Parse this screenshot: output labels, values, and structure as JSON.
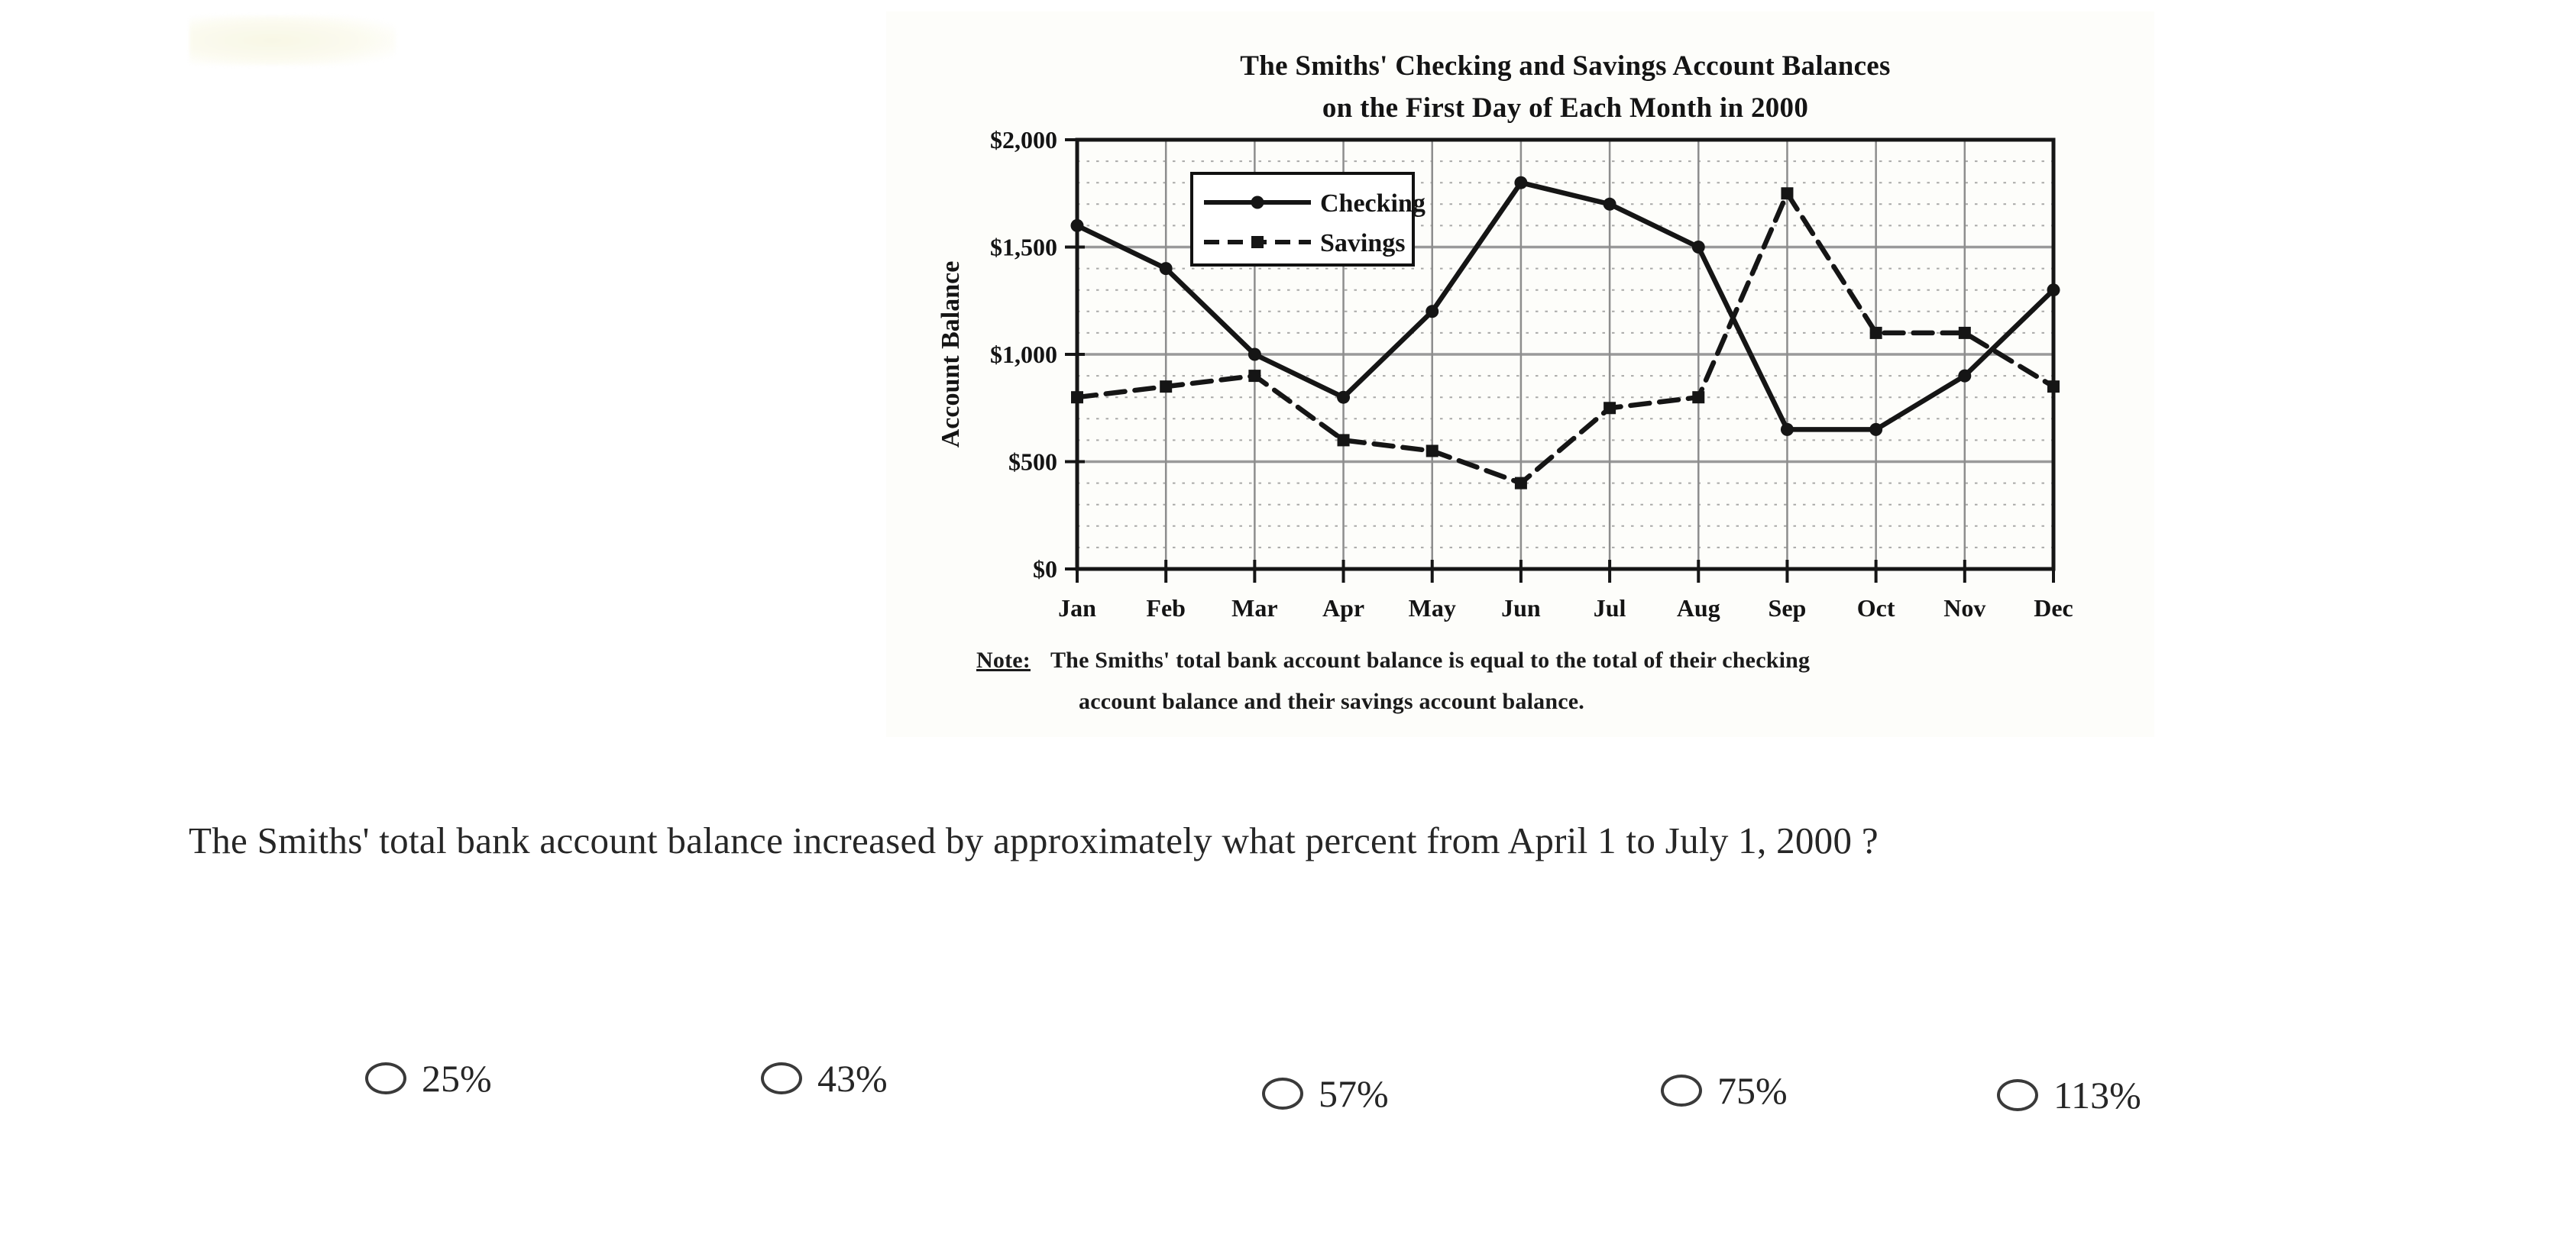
{
  "chart": {
    "title_line1": "The Smiths' Checking and Savings Account Balances",
    "title_line2": "on the First Day of Each Month in 2000",
    "note_label": "Note:",
    "note_line1": "The Smiths' total bank account balance is equal to the total of their checking",
    "note_line2": "account balance and their savings account balance."
  },
  "chart_data": {
    "type": "line",
    "title": "The Smiths' Checking and Savings Account Balances on the First Day of Each Month in 2000",
    "categories": [
      "Jan",
      "Feb",
      "Mar",
      "Apr",
      "May",
      "Jun",
      "Jul",
      "Aug",
      "Sep",
      "Oct",
      "Nov",
      "Dec"
    ],
    "series": [
      {
        "name": "Checking",
        "style": "solid",
        "marker": "circle",
        "values": [
          1600,
          1400,
          1000,
          800,
          1200,
          1800,
          1700,
          1500,
          650,
          650,
          900,
          1300
        ]
      },
      {
        "name": "Savings",
        "style": "dashed",
        "marker": "square",
        "values": [
          800,
          850,
          900,
          600,
          550,
          400,
          750,
          800,
          1750,
          1100,
          1100,
          850
        ]
      }
    ],
    "xlabel": "",
    "ylabel": "Account Balance",
    "ylim": [
      0,
      2000
    ],
    "y_tick_values": [
      0,
      500,
      1000,
      1500,
      2000
    ],
    "y_tick_labels": [
      "$0",
      "$500",
      "$1,000",
      "$1,500",
      "$2,000"
    ],
    "y_minor_step": 100,
    "grid": true,
    "legend_position": "upper-left",
    "line_color": "#151515"
  },
  "question": {
    "text": "The Smiths' total bank account balance increased by approximately what percent from April 1 to July 1, 2000 ?"
  },
  "options": [
    {
      "label": "25%"
    },
    {
      "label": "43%"
    },
    {
      "label": "57%"
    },
    {
      "label": "75%"
    },
    {
      "label": "113%"
    }
  ]
}
